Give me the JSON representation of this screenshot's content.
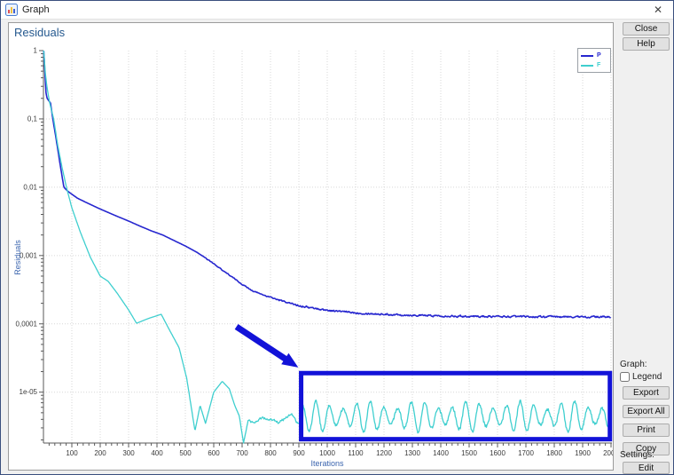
{
  "window": {
    "title": "Graph",
    "close_symbol": "✕"
  },
  "sidebar": {
    "close": "Close",
    "help": "Help",
    "graph_section_label": "Graph:",
    "legend_checkbox_label": "Legend",
    "legend_checked": false,
    "export": "Export",
    "export_all": "Export All",
    "print": "Print",
    "copy": "Copy",
    "settings_section_label": "Settings:",
    "edit": "Edit"
  },
  "chart_data": {
    "type": "line",
    "title": "Residuals",
    "xlabel": "Iterations",
    "ylabel": "Residuals",
    "x_range": [
      0,
      2000
    ],
    "x_tick_step": 100,
    "x_minor_step": 20,
    "y_scale": "log",
    "y_bottom": 1.8e-06,
    "y_ticks": [
      {
        "value": 1,
        "label": "1"
      },
      {
        "value": 0.1,
        "label": "0,1"
      },
      {
        "value": 0.01,
        "label": "0,01"
      },
      {
        "value": 0.001,
        "label": "0,001"
      },
      {
        "value": 0.0001,
        "label": "0,0001"
      },
      {
        "value": 1e-05,
        "label": "1e-05"
      }
    ],
    "grid": true,
    "legend_position": "top-right",
    "style": {
      "grid_color": "#d7d7d7",
      "axis_color": "#5a5a5a",
      "tick_text_color": "#3a3a3a",
      "axis_label_color": "#3a64ae"
    },
    "series": [
      {
        "name": "P",
        "color": "#2727cf",
        "width": 1.6,
        "points": [
          [
            1,
            1
          ],
          [
            5,
            0.5
          ],
          [
            9,
            0.24
          ],
          [
            13,
            0.2
          ],
          [
            25,
            0.17
          ],
          [
            33,
            0.1
          ],
          [
            45,
            0.05
          ],
          [
            60,
            0.02
          ],
          [
            72,
            0.01
          ],
          [
            85,
            0.0088
          ],
          [
            100,
            0.0079
          ],
          [
            120,
            0.0069
          ],
          [
            150,
            0.006
          ],
          [
            200,
            0.0048
          ],
          [
            250,
            0.0039
          ],
          [
            300,
            0.0032
          ],
          [
            340,
            0.0027
          ],
          [
            380,
            0.0023
          ],
          [
            420,
            0.002
          ],
          [
            460,
            0.00166
          ],
          [
            500,
            0.00138
          ],
          [
            540,
            0.00112
          ],
          [
            580,
            0.00087
          ],
          [
            620,
            0.00066
          ],
          [
            660,
            0.0005
          ],
          [
            700,
            0.00038
          ],
          [
            740,
            0.0003
          ],
          [
            780,
            0.00026
          ],
          [
            820,
            0.00023
          ],
          [
            860,
            0.000204
          ],
          [
            900,
            0.000186
          ],
          [
            950,
            0.00017
          ],
          [
            1000,
            0.000158
          ],
          [
            1100,
            0.000145
          ],
          [
            1200,
            0.000138
          ],
          [
            1350,
            0.000132
          ],
          [
            1500,
            0.000129
          ],
          [
            1700,
            0.000127
          ],
          [
            2000,
            0.000126
          ]
        ],
        "noise": [
          {
            "from": 560,
            "to": 830,
            "amp": 0.012
          },
          {
            "from": 830,
            "to": 2000,
            "amp": 0.022
          }
        ]
      },
      {
        "name": "F",
        "color": "#3fcfcf",
        "width": 1.3,
        "points": [
          [
            1,
            1
          ],
          [
            6,
            0.5
          ],
          [
            12,
            0.3
          ],
          [
            22,
            0.17
          ],
          [
            36,
            0.1
          ],
          [
            50,
            0.042
          ],
          [
            65,
            0.02
          ],
          [
            81,
            0.01
          ],
          [
            100,
            0.005
          ],
          [
            130,
            0.0022
          ],
          [
            165,
            0.00095
          ],
          [
            200,
            0.0005
          ],
          [
            228,
            0.00042
          ],
          [
            260,
            0.00028
          ],
          [
            300,
            0.00016
          ],
          [
            328,
            0.000102
          ],
          [
            370,
            0.00012
          ],
          [
            415,
            0.000138
          ],
          [
            445,
            8e-05
          ],
          [
            478,
            4.47e-05
          ],
          [
            505,
            1.58e-05
          ],
          [
            534,
            2.7e-06
          ],
          [
            552,
            6.4e-06
          ],
          [
            571,
            3.5e-06
          ],
          [
            600,
            1e-05
          ],
          [
            630,
            1.44e-05
          ],
          [
            655,
            1.12e-05
          ],
          [
            674,
            6.4e-06
          ],
          [
            690,
            4.5e-06
          ],
          [
            705,
            1.8e-06
          ],
          [
            721,
            3.8e-06
          ],
          [
            740,
            3.5e-06
          ],
          [
            770,
            4.2e-06
          ],
          [
            800,
            4e-06
          ],
          [
            830,
            3.6e-06
          ],
          [
            860,
            4.4e-06
          ],
          [
            875,
            4.8e-06
          ],
          [
            895,
            3.5e-06
          ],
          [
            915,
            3.2e-06
          ]
        ],
        "noise": [
          {
            "from": 715,
            "to": 915,
            "amp": 0.035
          }
        ],
        "oscillation": {
          "from": 915,
          "to": 2000,
          "center_log": -5.36,
          "amp_log": 0.17,
          "amp_mod": 0.06,
          "mod_period": 180,
          "period": 48,
          "trough_at": 936,
          "noise": 0.02
        }
      }
    ],
    "annotation": {
      "color": "#1212d8",
      "arrow": {
        "from_iter": 680,
        "from_value": 9.1e-05,
        "to_iter": 898,
        "to_value": 2.3e-05
      },
      "rect": {
        "x1_iter": 908,
        "x2_iter": 1996,
        "top_value": 1.9e-05,
        "bottom_value": 2.05e-06
      }
    }
  }
}
